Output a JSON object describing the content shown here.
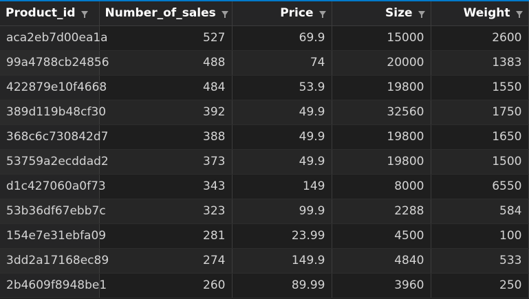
{
  "table": {
    "columns": [
      {
        "label": "Product_id",
        "align": "left",
        "icon": "filter-icon"
      },
      {
        "label": "Number_of_sales",
        "align": "right",
        "icon": "filter-icon"
      },
      {
        "label": "Price",
        "align": "right",
        "icon": "filter-icon"
      },
      {
        "label": "Size",
        "align": "right",
        "icon": "filter-icon"
      },
      {
        "label": "Weight",
        "align": "right",
        "icon": "filter-icon"
      }
    ],
    "rows": [
      [
        "aca2eb7d00ea1a",
        "527",
        "69.9",
        "15000",
        "2600"
      ],
      [
        "99a4788cb24856",
        "488",
        "74",
        "20000",
        "1383"
      ],
      [
        "422879e10f4668",
        "484",
        "53.9",
        "19800",
        "1550"
      ],
      [
        "389d119b48cf30",
        "392",
        "49.9",
        "32560",
        "1750"
      ],
      [
        "368c6c730842d7",
        "388",
        "49.9",
        "19800",
        "1650"
      ],
      [
        "53759a2ecddad2",
        "373",
        "49.9",
        "19800",
        "1500"
      ],
      [
        "d1c427060a0f73",
        "343",
        "149",
        "8000",
        "6550"
      ],
      [
        "53b36df67ebb7c",
        "323",
        "99.9",
        "2288",
        "584"
      ],
      [
        "154e7e31ebfa09",
        "281",
        "23.99",
        "4500",
        "100"
      ],
      [
        "3dd2a17168ec89",
        "274",
        "149.9",
        "4840",
        "533"
      ],
      [
        "2b4609f8948be1",
        "260",
        "89.99",
        "3960",
        "250"
      ]
    ]
  },
  "colors": {
    "background": "#1e1e1e",
    "header_background": "#252526",
    "header_text": "#ffffff",
    "cell_text": "#d4d4d4",
    "accent": "#007acc"
  }
}
